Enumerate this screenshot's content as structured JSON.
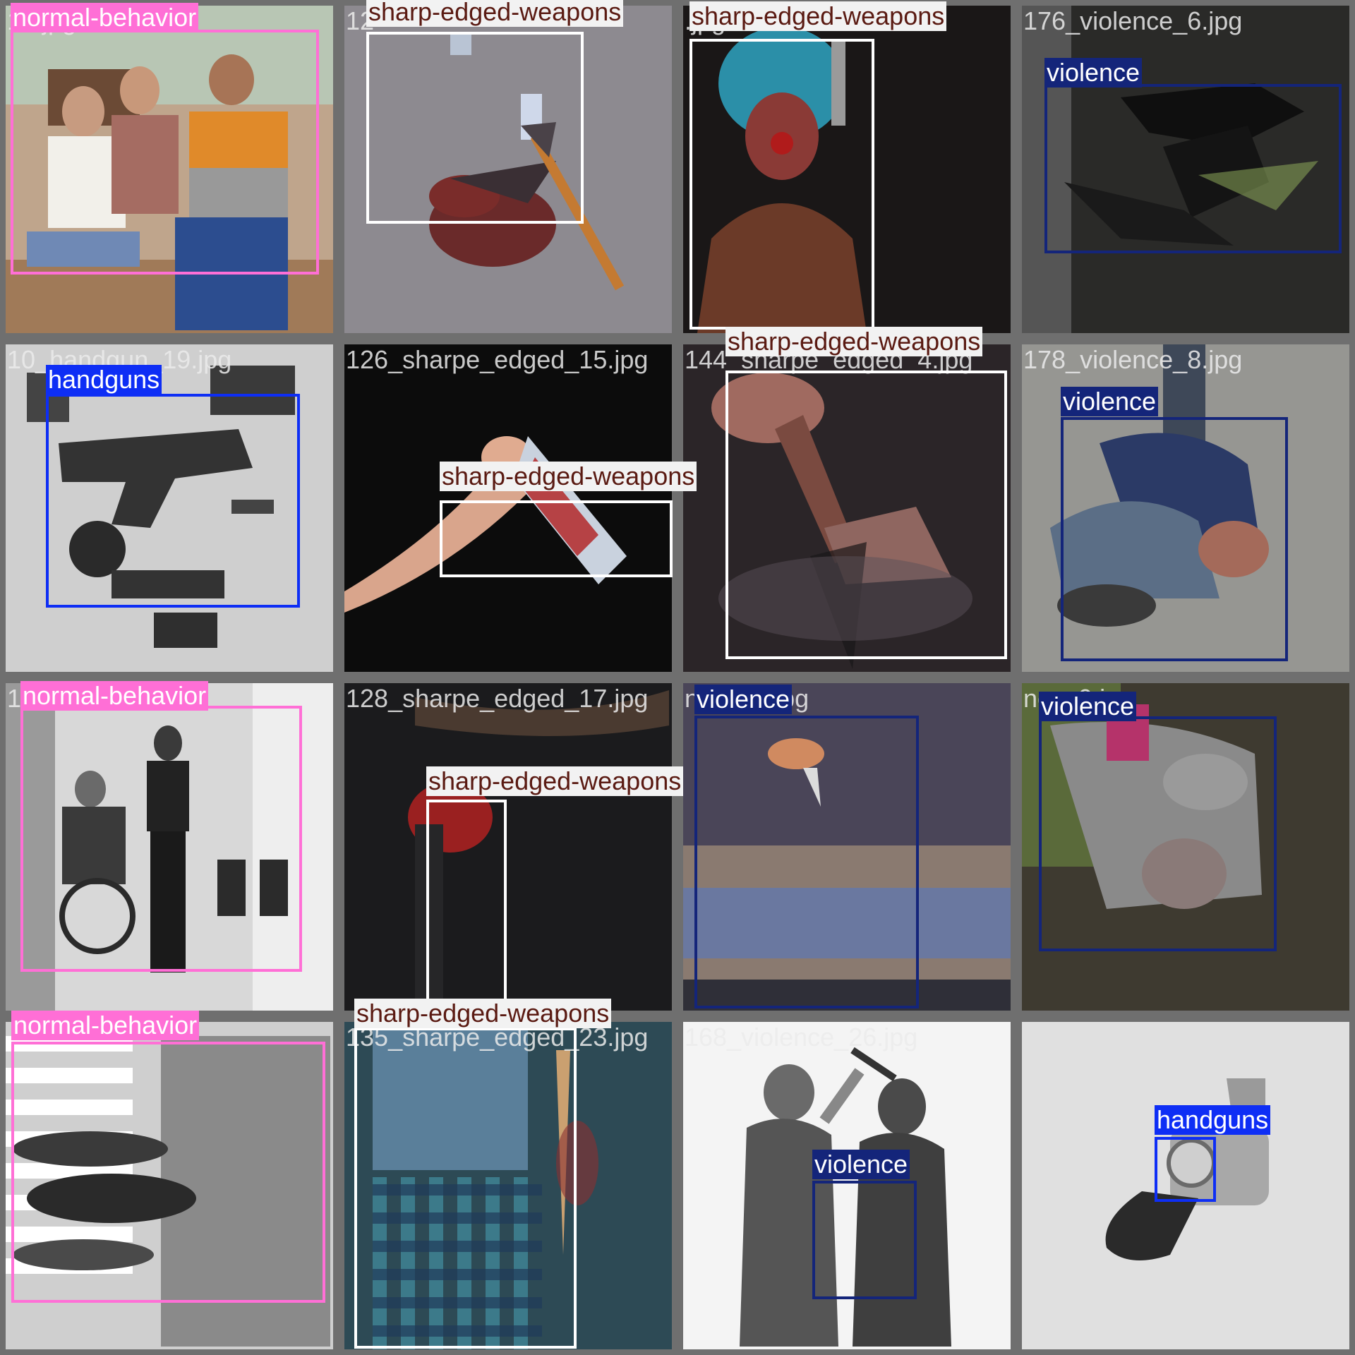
{
  "classes": {
    "normal-behavior": {
      "box": "#ff6fd6",
      "bg": "#ff6fd6",
      "fg": "#ffffff"
    },
    "sharp-edged-weapons": {
      "box": "#ffffff",
      "bg": "#f2f2f2",
      "fg": "#5a1a12"
    },
    "violence": {
      "box": "#14257a",
      "bg": "#14257a",
      "fg": "#ffffff"
    },
    "handguns": {
      "box": "#0e2ef5",
      "bg": "#0e2ef5",
      "fg": "#ffffff"
    }
  },
  "tiles": [
    {
      "filename": "19.jpg",
      "scene": "living-room",
      "bg": "#bfa58c",
      "labels": [
        {
          "text": "normal-behavior",
          "cls": "normal-behavior"
        }
      ]
    },
    {
      "filename": "12",
      "scene": "floor-axe",
      "bg": "#8d8a90",
      "labels": [
        {
          "text": "sharp-edged-weapons",
          "cls": "sharp-edged-weapons"
        }
      ]
    },
    {
      "filename": ".jpg",
      "scene": "clown",
      "bg": "#1a1717",
      "labels": [
        {
          "text": "sharp-edged-weapons",
          "cls": "sharp-edged-weapons"
        }
      ]
    },
    {
      "filename": "176_violence_6.jpg",
      "scene": "dark-fight",
      "bg": "#2a2a28",
      "labels": [
        {
          "text": "violence",
          "cls": "violence"
        }
      ]
    },
    {
      "filename": "10_handgun_19.jpg",
      "scene": "pistols",
      "bg": "#c9c9c9",
      "labels": [
        {
          "text": "handguns",
          "cls": "handguns"
        }
      ]
    },
    {
      "filename": "126_sharpe_edged_15.jpg",
      "scene": "cleaver",
      "bg": "#0c0c0c",
      "labels": [
        {
          "text": "sharp-edged-weapons",
          "cls": "sharp-edged-weapons"
        }
      ]
    },
    {
      "filename": "144_sharpe_edged_4.jpg",
      "scene": "hand-axe",
      "bg": "#2b2528",
      "labels": [
        {
          "text": "sharp-edged-weapons",
          "cls": "sharp-edged-weapons"
        }
      ]
    },
    {
      "filename": "178_violence_8.jpg",
      "scene": "street-fight",
      "bg": "#8f8f8c",
      "labels": [
        {
          "text": "violence",
          "cls": "violence"
        }
      ]
    },
    {
      "filename": "1",
      "scene": "office",
      "bg": "#cfcfcf",
      "labels": [
        {
          "text": "normal-behavior",
          "cls": "normal-behavior"
        }
      ]
    },
    {
      "filename": "128_sharpe_edged_17.jpg",
      "scene": "dark-knife",
      "bg": "#1b1b1d",
      "labels": [
        {
          "text": "sharp-edged-weapons",
          "cls": "sharp-edged-weapons"
        }
      ]
    },
    {
      "filename": "nce_19.jpg",
      "scene": "knife-hand",
      "bg": "#4a4558",
      "labels": [
        {
          "text": "violence",
          "cls": "violence"
        }
      ]
    },
    {
      "filename": "nce_9.jpg",
      "scene": "grass-fight",
      "bg": "#4d4a3e",
      "labels": [
        {
          "text": "violence",
          "cls": "violence"
        }
      ]
    },
    {
      "filename": "",
      "scene": "crosswalk",
      "bg": "#c4c4c4",
      "labels": [
        {
          "text": "normal-behavior",
          "cls": "normal-behavior"
        }
      ]
    },
    {
      "filename": "135_sharpe_edged_23.jpg",
      "scene": "plaid",
      "bg": "#24404a",
      "labels": [
        {
          "text": "sharp-edged-weapons",
          "cls": "sharp-edged-weapons"
        }
      ]
    },
    {
      "filename": "168_violence_26.jpg",
      "scene": "silhouettes",
      "bg": "#f4f4f4",
      "labels": [
        {
          "text": "violence",
          "cls": "violence"
        }
      ]
    },
    {
      "filename": "",
      "scene": "revolver",
      "bg": "#e2e2e2",
      "labels": [
        {
          "text": "handguns",
          "cls": "handguns"
        }
      ]
    }
  ]
}
